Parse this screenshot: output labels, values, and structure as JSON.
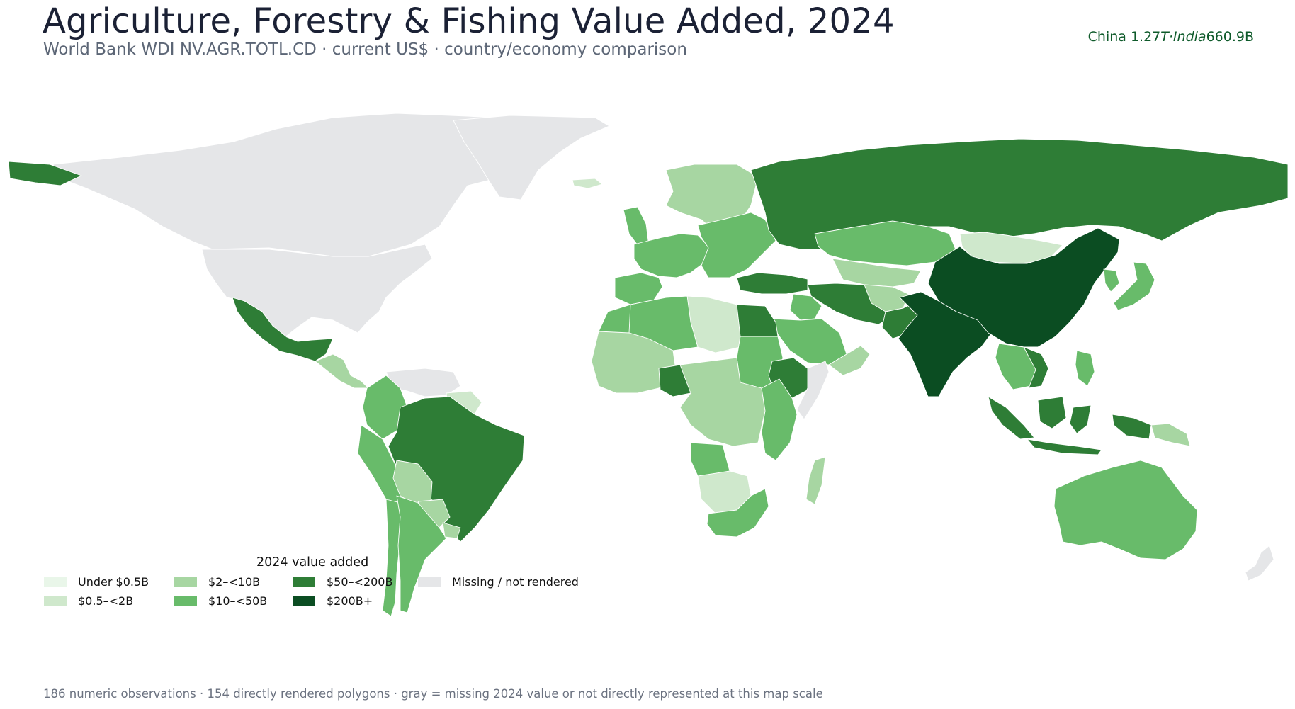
{
  "title": "Agriculture, Forestry & Fishing Value Added, 2024",
  "subtitle": "World Bank WDI NV.AGR.TOTL.CD · current US$ · country/economy comparison",
  "callout": {
    "part1": "China 1.27",
    "part2": "T·India",
    "part3": "660.9B"
  },
  "legend": {
    "title": "2024 value added",
    "items": [
      {
        "label": "Under $0.5B",
        "color": "#e9f6e9"
      },
      {
        "label": "$0.5–<2B",
        "color": "#cfe8cc"
      },
      {
        "label": "$2–<10B",
        "color": "#a7d6a2"
      },
      {
        "label": "$10–<50B",
        "color": "#68bb6a"
      },
      {
        "label": "$50–<200B",
        "color": "#2e7d36"
      },
      {
        "label": "$200B+",
        "color": "#0b4d22"
      },
      {
        "label": "Missing / not rendered",
        "color": "#e5e6e8"
      }
    ]
  },
  "map_data": {
    "regions": [
      {
        "name": "Canada",
        "bin": "Missing / not rendered"
      },
      {
        "name": "United States",
        "bin": "Missing / not rendered"
      },
      {
        "name": "Greenland",
        "bin": "Missing / not rendered"
      },
      {
        "name": "Alaska",
        "bin": "$50–<200B"
      },
      {
        "name": "Mexico",
        "bin": "$50–<200B"
      },
      {
        "name": "Central America",
        "bin": "$2–<10B"
      },
      {
        "name": "Venezuela",
        "bin": "Missing / not rendered"
      },
      {
        "name": "Guianas",
        "bin": "$0.5–<2B"
      },
      {
        "name": "Colombia",
        "bin": "$10–<50B"
      },
      {
        "name": "Peru",
        "bin": "$10–<50B"
      },
      {
        "name": "Brazil",
        "bin": "$50–<200B"
      },
      {
        "name": "Bolivia",
        "bin": "$2–<10B"
      },
      {
        "name": "Paraguay",
        "bin": "$2–<10B"
      },
      {
        "name": "Chile",
        "bin": "$10–<50B"
      },
      {
        "name": "Argentina",
        "bin": "$10–<50B"
      },
      {
        "name": "Uruguay",
        "bin": "$2–<10B"
      },
      {
        "name": "Iceland",
        "bin": "$0.5–<2B"
      },
      {
        "name": "Scandinavia",
        "bin": "$2–<10B"
      },
      {
        "name": "United Kingdom",
        "bin": "$10–<50B"
      },
      {
        "name": "Western Europe",
        "bin": "$10–<50B"
      },
      {
        "name": "Iberia",
        "bin": "$10–<50B"
      },
      {
        "name": "Eastern Europe",
        "bin": "$10–<50B"
      },
      {
        "name": "Russia",
        "bin": "$50–<200B"
      },
      {
        "name": "Turkey",
        "bin": "$50–<200B"
      },
      {
        "name": "Kazakhstan",
        "bin": "$10–<50B"
      },
      {
        "name": "Central Asia",
        "bin": "$2–<10B"
      },
      {
        "name": "Iran",
        "bin": "$50–<200B"
      },
      {
        "name": "Iraq",
        "bin": "$10–<50B"
      },
      {
        "name": "Saudi Arabia",
        "bin": "$10–<50B"
      },
      {
        "name": "Yemen / Oman",
        "bin": "$2–<10B"
      },
      {
        "name": "Afghanistan",
        "bin": "$2–<10B"
      },
      {
        "name": "Pakistan",
        "bin": "$50–<200B"
      },
      {
        "name": "India",
        "bin": "$200B+"
      },
      {
        "name": "Mongolia",
        "bin": "$0.5–<2B"
      },
      {
        "name": "China",
        "bin": "$200B+"
      },
      {
        "name": "Korea",
        "bin": "$10–<50B"
      },
      {
        "name": "Japan",
        "bin": "$10–<50B"
      },
      {
        "name": "Mainland Southeast Asia",
        "bin": "$10–<50B"
      },
      {
        "name": "Vietnam",
        "bin": "$50–<200B"
      },
      {
        "name": "Philippines",
        "bin": "$10–<50B"
      },
      {
        "name": "Indonesia",
        "bin": "$50–<200B"
      },
      {
        "name": "Papua New Guinea",
        "bin": "$2–<10B"
      },
      {
        "name": "Australia",
        "bin": "$10–<50B"
      },
      {
        "name": "New Zealand",
        "bin": "Missing / not rendered"
      },
      {
        "name": "Morocco",
        "bin": "$10–<50B"
      },
      {
        "name": "Algeria",
        "bin": "$10–<50B"
      },
      {
        "name": "Libya",
        "bin": "$0.5–<2B"
      },
      {
        "name": "Egypt",
        "bin": "$50–<200B"
      },
      {
        "name": "Sudan",
        "bin": "$10–<50B"
      },
      {
        "name": "West Africa",
        "bin": "$2–<10B"
      },
      {
        "name": "Nigeria",
        "bin": "$50–<200B"
      },
      {
        "name": "Ethiopia",
        "bin": "$50–<200B"
      },
      {
        "name": "Somalia",
        "bin": "Missing / not rendered"
      },
      {
        "name": "Central Africa",
        "bin": "$2–<10B"
      },
      {
        "name": "East Africa",
        "bin": "$10–<50B"
      },
      {
        "name": "Angola",
        "bin": "$10–<50B"
      },
      {
        "name": "Namibia / Botswana",
        "bin": "$0.5–<2B"
      },
      {
        "name": "South Africa",
        "bin": "$10–<50B"
      },
      {
        "name": "Madagascar",
        "bin": "$2–<10B"
      }
    ]
  },
  "footnote": "186 numeric observations · 154 directly rendered polygons · gray = missing 2024 value or not directly represented at this map scale"
}
